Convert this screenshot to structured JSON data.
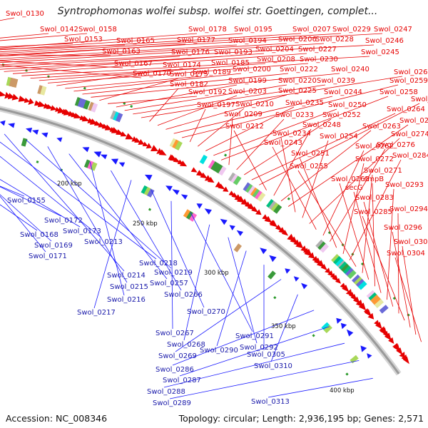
{
  "title": "Syntrophomonas wolfei subsp. wolfei str. Goettingen, complet...",
  "accession": "Accession: NC_008346",
  "topology": "Topology: circular; Length: 2,936,195 bp; Genes: 2,571",
  "colors": {
    "forward_gene": "#e60000",
    "reverse_gene": "#1a1aff",
    "label_forward": "#e60000",
    "label_reverse": "#1a1aaa",
    "backbone": "#9a9a9a"
  },
  "ticks": [
    "200 kbp",
    "250 kbp",
    "300 kbp",
    "350 kbp",
    "400 kbp"
  ],
  "forward_labels": [
    "Swol_0130",
    "Swol_0142",
    "Swol_0158",
    "Swol_0153",
    "Swol_0165",
    "Swol_0163",
    "Swol_0167",
    "Swol_0170",
    "Swol_0178",
    "Swol_0195",
    "Swol_0207",
    "Swol_0229",
    "Swol_0247",
    "Swol_0177",
    "Swol_0194",
    "Swol_0206",
    "Swol_0228",
    "Swol_0246",
    "Swol_0176",
    "Swol_0193",
    "Swol_0204",
    "Swol_0227",
    "Swol_0245",
    "Swol_0185",
    "Swol_0208",
    "Swol_0230",
    "Swol_0174",
    "Swol_0189",
    "Swol_0200",
    "Swol_0222",
    "Swol_0240",
    "Swol_0175",
    "Swol_0192",
    "Swol_0199",
    "Swol_0220",
    "Swol_0239",
    "Swol_0260",
    "Swol_0182",
    "Swol_0203",
    "Swol_0225",
    "Swol_0244",
    "Swol_0259",
    "Swol_0197",
    "Swol_0210",
    "Swol_0235",
    "Swol_0250",
    "Swol_0258",
    "Swol_0209",
    "Swol_0233",
    "Swol_0252",
    "Swol_0264",
    "Swol_0273",
    "Swol_0212",
    "Swol_0248",
    "Swol_0263",
    "Swol_0275",
    "Swol_0234",
    "Swol_0254",
    "Swol_0274",
    "Swol_0243",
    "Swol_0262",
    "Swol_0276",
    "Swol_0251",
    "Swol_0272",
    "Swol_0284",
    "Swol_0255",
    "Swol_0271",
    "Swol_0265",
    "smpB",
    "secG",
    "Swol_0293",
    "Swol_0283",
    "Swol_0294",
    "Swol_0285",
    "Swol_0296",
    "Swol_0301",
    "Swol_0304"
  ],
  "reverse_labels": [
    "Swol_0155",
    "Swol_0172",
    "Swol_0168",
    "Swol_0173",
    "Swol_0169",
    "Swol_0171",
    "Swol_0213",
    "Swol_0218",
    "Swol_0214",
    "Swol_0219",
    "Swol_0215",
    "Swol_0257",
    "Swol_0216",
    "Swol_0266",
    "Swol_0217",
    "Swol_0270",
    "Swol_0267",
    "Swol_0291",
    "Swol_0268",
    "Swol_0292",
    "Swol_0290",
    "Swol_0305",
    "Swol_0269",
    "Swol_0310",
    "Swol_0286",
    "Swol_0287",
    "Swol_0288",
    "Swol_0289",
    "Swol_0313"
  ]
}
